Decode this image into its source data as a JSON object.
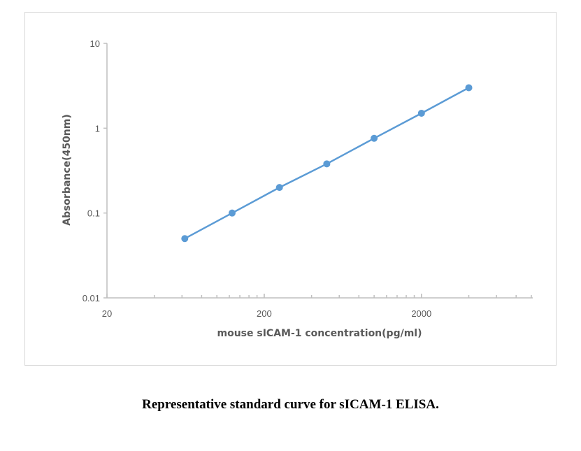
{
  "chart_data": {
    "type": "line",
    "xlabel": "mouse sICAM-1 concentration(pg/ml)",
    "ylabel": "Absorbance(450nm)",
    "x_scale": "log",
    "y_scale": "log",
    "xlim": [
      20,
      10000
    ],
    "ylim": [
      0.01,
      10
    ],
    "x_ticks": [
      20,
      200,
      2000
    ],
    "x_tick_labels": [
      "20",
      "200",
      "2000"
    ],
    "y_ticks": [
      0.01,
      0.1,
      1,
      10
    ],
    "y_tick_labels": [
      "0.01",
      "0.1",
      "1",
      "10"
    ],
    "grid": false,
    "line_color": "#5b9bd5",
    "series": [
      {
        "x": [
          62.5,
          125,
          250,
          500,
          1000,
          2000,
          4000
        ],
        "y": [
          0.05,
          0.1,
          0.2,
          0.38,
          0.76,
          1.5,
          3.0
        ]
      }
    ]
  },
  "caption": "Representative standard curve for sICAM-1 ELISA."
}
